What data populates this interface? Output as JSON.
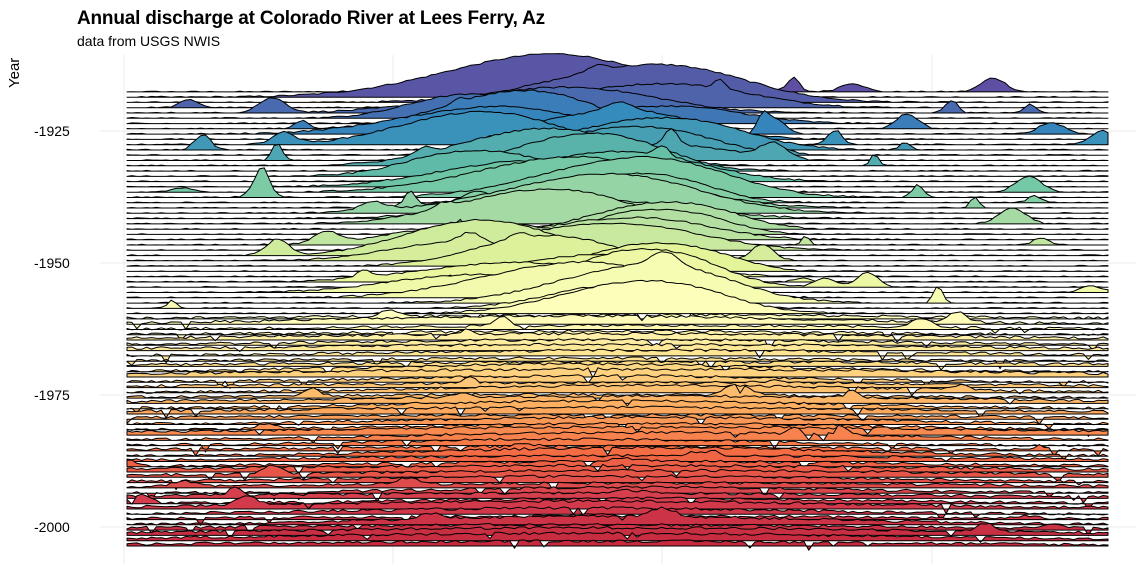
{
  "chart_data": {
    "type": "ridgeline",
    "title": "Annual discharge at Colorado River at Lees Ferry, Az",
    "subtitle": "data from USGS NWIS",
    "ylabel": "Year",
    "xlabel": "",
    "y_ticks": [
      {
        "value": 1925,
        "label": "-1925"
      },
      {
        "value": 1950,
        "label": "-1950"
      },
      {
        "value": 1975,
        "label": "-1975"
      },
      {
        "value": 2000,
        "label": "-2000"
      }
    ],
    "ylim": [
      1921,
      2007
    ],
    "grid": true,
    "legend": "none",
    "palette": [
      "#5e4fa2",
      "#3288bd",
      "#66c2a5",
      "#abdda4",
      "#e6f598",
      "#ffffbf",
      "#fee08b",
      "#fdae61",
      "#f46d43",
      "#d53e4f",
      "#c62a3f"
    ]
  }
}
